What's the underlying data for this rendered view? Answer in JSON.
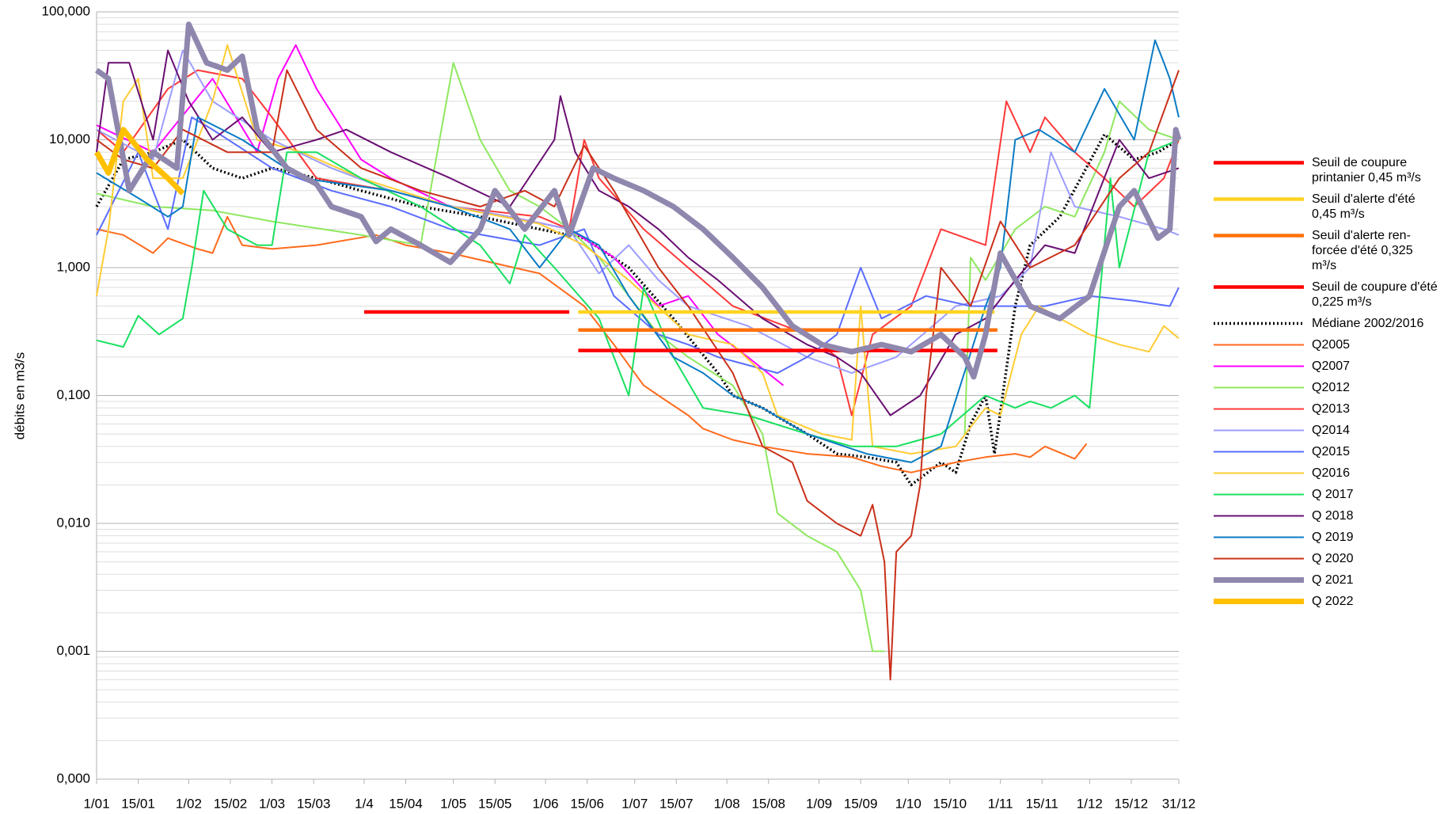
{
  "chart_data": {
    "type": "line",
    "y_label": "débits en m3/s",
    "log_scale": true,
    "grid": true,
    "minor_grid": true,
    "xlim": [
      1,
      365
    ],
    "xticks": [
      {
        "value": 1,
        "label": "1/01"
      },
      {
        "value": 15,
        "label": "15/01"
      },
      {
        "value": 32,
        "label": "1/02"
      },
      {
        "value": 46,
        "label": "15/02"
      },
      {
        "value": 60,
        "label": "1/03"
      },
      {
        "value": 74,
        "label": "15/03"
      },
      {
        "value": 91,
        "label": "1/4"
      },
      {
        "value": 105,
        "label": "15/04"
      },
      {
        "value": 121,
        "label": "1/05"
      },
      {
        "value": 135,
        "label": "15/05"
      },
      {
        "value": 152,
        "label": "1/06"
      },
      {
        "value": 166,
        "label": "15/06"
      },
      {
        "value": 182,
        "label": "1/07"
      },
      {
        "value": 196,
        "label": "15/07"
      },
      {
        "value": 213,
        "label": "1/08"
      },
      {
        "value": 227,
        "label": "15/08"
      },
      {
        "value": 244,
        "label": "1/09"
      },
      {
        "value": 258,
        "label": "15/09"
      },
      {
        "value": 274,
        "label": "1/10"
      },
      {
        "value": 288,
        "label": "15/10"
      },
      {
        "value": 305,
        "label": "1/11"
      },
      {
        "value": 319,
        "label": "15/11"
      },
      {
        "value": 335,
        "label": "1/12"
      },
      {
        "value": 349,
        "label": "15/12"
      },
      {
        "value": 365,
        "label": "31/12"
      }
    ],
    "ylim": [
      0.0001,
      100
    ],
    "yticks": [
      {
        "value": 0.0001,
        "label": "0,000"
      },
      {
        "value": 0.001,
        "label": "0,001"
      },
      {
        "value": 0.01,
        "label": "0,010"
      },
      {
        "value": 0.1,
        "label": "0,100"
      },
      {
        "value": 1,
        "label": "1,000"
      },
      {
        "value": 10,
        "label": "10,000"
      },
      {
        "value": 100,
        "label": "100,000"
      }
    ],
    "series": [
      {
        "name": "Seuil de coupure printanier 0,45 m³/s",
        "color": "#ff0000",
        "style": "threshold",
        "x": [
          91,
          160
        ],
        "values": [
          0.45,
          0.45
        ]
      },
      {
        "name": "Seuil d'alerte d'été 0,45 m³/s",
        "color": "#ffd320",
        "style": "threshold",
        "x": [
          163,
          303
        ],
        "values": [
          0.45,
          0.45
        ]
      },
      {
        "name": "Seuil d'alerte ren-forcée d'été 0,325 m³/s",
        "color": "#ff720d",
        "style": "threshold",
        "x": [
          163,
          304
        ],
        "values": [
          0.325,
          0.325
        ]
      },
      {
        "name": "Seuil de coupure d'été 0,225 m³/s",
        "color": "#ff0000",
        "style": "threshold",
        "x": [
          163,
          304
        ],
        "values": [
          0.225,
          0.225
        ]
      },
      {
        "name": "Médiane 2002/2016",
        "color": "#000000",
        "style": "dotted",
        "x": [
          1,
          10,
          20,
          30,
          40,
          50,
          60,
          75,
          90,
          110,
          130,
          150,
          165,
          180,
          195,
          210,
          215,
          225,
          240,
          250,
          260,
          270,
          275,
          285,
          290,
          295,
          300,
          303,
          310,
          315,
          325,
          340,
          350,
          358,
          365
        ],
        "values": [
          3,
          7,
          8,
          10,
          6,
          5,
          6,
          5,
          4,
          3,
          2.5,
          2,
          1.7,
          1,
          0.4,
          0.15,
          0.1,
          0.08,
          0.05,
          0.035,
          0.033,
          0.03,
          0.02,
          0.03,
          0.025,
          0.06,
          0.1,
          0.035,
          0.5,
          1.5,
          2.5,
          11,
          7,
          8,
          10
        ]
      },
      {
        "name": "Q2005",
        "color": "#ff6a1c",
        "style": "normal",
        "x": [
          1,
          10,
          20,
          25,
          35,
          40,
          45,
          50,
          60,
          75,
          95,
          105,
          120,
          150,
          165,
          175,
          185,
          190,
          200,
          205,
          215,
          225,
          240,
          255,
          265,
          275,
          290,
          300,
          310,
          315,
          320,
          330,
          334
        ],
        "values": [
          2,
          1.8,
          1.3,
          1.7,
          1.4,
          1.3,
          2.5,
          1.5,
          1.4,
          1.5,
          1.8,
          1.5,
          1.3,
          0.9,
          0.5,
          0.25,
          0.12,
          0.1,
          0.07,
          0.055,
          0.045,
          0.04,
          0.035,
          0.033,
          0.028,
          0.025,
          0.03,
          0.033,
          0.035,
          0.033,
          0.04,
          0.032,
          0.042
        ]
      },
      {
        "name": "Q2007",
        "color": "#ff00ff",
        "style": "normal",
        "x": [
          1,
          20,
          40,
          55,
          62,
          68,
          75,
          90,
          100,
          120,
          140,
          160,
          175,
          190,
          200,
          210,
          220,
          232,
          338,
          342
        ],
        "values": [
          13,
          8,
          30,
          8,
          30,
          55,
          25,
          7,
          5,
          3,
          2.5,
          2,
          1.2,
          0.5,
          0.6,
          0.3,
          0.2,
          0.12,
          null,
          2.5
        ]
      },
      {
        "name": "Q2012",
        "color": "#8fe860",
        "style": "normal",
        "x": [
          1,
          20,
          40,
          60,
          90,
          110,
          121,
          130,
          140,
          150,
          160,
          170,
          180,
          190,
          200,
          215,
          225,
          230,
          240,
          250,
          258,
          262,
          266,
          280,
          293,
          295,
          300,
          310,
          320,
          330,
          340,
          345,
          355,
          365
        ],
        "values": [
          3.8,
          3,
          2.8,
          2.3,
          1.8,
          1.5,
          40,
          10,
          4,
          3,
          2,
          1.2,
          0.6,
          0.3,
          0.2,
          0.12,
          0.05,
          0.012,
          0.008,
          0.006,
          0.003,
          0.001,
          0.001,
          null,
          0.05,
          1.2,
          0.8,
          2,
          3,
          2.5,
          8,
          20,
          12,
          10
        ]
      },
      {
        "name": "Q2013",
        "color": "#ff3838",
        "style": "normal",
        "x": [
          1,
          10,
          25,
          35,
          50,
          60,
          75,
          100,
          120,
          150,
          160,
          165,
          170,
          185,
          200,
          215,
          240,
          250,
          255,
          262,
          275,
          285,
          300,
          307,
          315,
          320,
          330,
          340,
          350,
          360,
          365
        ],
        "values": [
          12,
          8,
          25,
          35,
          30,
          15,
          5,
          4,
          3,
          2.5,
          2,
          10,
          5,
          2,
          1,
          0.5,
          0.3,
          0.2,
          0.07,
          0.3,
          0.5,
          2,
          1.5,
          20,
          8,
          15,
          8,
          5,
          3,
          5,
          10
        ]
      },
      {
        "name": "Q2014",
        "color": "#9d9dff",
        "style": "normal",
        "x": [
          1,
          20,
          30,
          40,
          60,
          80,
          100,
          121,
          140,
          160,
          170,
          180,
          190,
          200,
          220,
          240,
          255,
          270,
          290,
          305,
          315,
          322,
          330,
          345,
          360,
          365
        ],
        "values": [
          12,
          7,
          50,
          20,
          10,
          6,
          4,
          3,
          2.5,
          2,
          0.9,
          1.5,
          0.8,
          0.5,
          0.35,
          0.2,
          0.15,
          0.2,
          0.5,
          0.6,
          1,
          8,
          3,
          2.5,
          2,
          1.8
        ]
      },
      {
        "name": "Q2015",
        "color": "#5a6cff",
        "style": "normal",
        "x": [
          1,
          15,
          25,
          33,
          40,
          60,
          80,
          100,
          120,
          150,
          165,
          175,
          190,
          200,
          210,
          230,
          240,
          250,
          258,
          265,
          280,
          295,
          305,
          320,
          335,
          350,
          362,
          365
        ],
        "values": [
          1.8,
          8,
          2,
          15,
          12,
          6,
          4,
          3,
          2,
          1.5,
          2,
          0.6,
          0.3,
          0.25,
          0.2,
          0.15,
          0.2,
          0.3,
          1,
          0.4,
          0.6,
          0.5,
          0.5,
          0.5,
          0.6,
          0.55,
          0.5,
          0.7
        ]
      },
      {
        "name": "Q2016",
        "color": "#ffcc33",
        "style": "normal",
        "x": [
          1,
          5,
          10,
          15,
          20,
          30,
          40,
          45,
          55,
          70,
          90,
          120,
          150,
          165,
          180,
          200,
          215,
          225,
          230,
          245,
          255,
          258,
          262,
          275,
          290,
          300,
          305,
          312,
          318,
          325,
          335,
          345,
          355,
          360,
          365
        ],
        "values": [
          0.6,
          2,
          20,
          30,
          5,
          5,
          20,
          55,
          10,
          8,
          5,
          3,
          2.2,
          1.5,
          0.8,
          0.3,
          0.25,
          0.15,
          0.07,
          0.05,
          0.045,
          0.5,
          0.04,
          0.035,
          0.04,
          0.08,
          0.07,
          0.3,
          0.5,
          0.4,
          0.3,
          0.25,
          0.22,
          0.35,
          0.28
        ]
      },
      {
        "name": "Q 2017",
        "color": "#19e060",
        "style": "normal",
        "x": [
          1,
          10,
          15,
          22,
          30,
          33,
          37,
          45,
          55,
          60,
          65,
          75,
          90,
          110,
          130,
          140,
          145,
          155,
          170,
          180,
          185,
          195,
          205,
          220,
          240,
          255,
          270,
          285,
          300,
          310,
          315,
          322,
          330,
          335,
          342,
          345,
          355,
          365
        ],
        "values": [
          0.27,
          0.24,
          0.42,
          0.3,
          0.4,
          1,
          4,
          2,
          1.5,
          1.5,
          8,
          8,
          5,
          3,
          1.5,
          0.75,
          1.8,
          1,
          0.4,
          0.1,
          0.7,
          0.2,
          0.08,
          0.07,
          0.05,
          0.04,
          0.04,
          0.05,
          0.1,
          0.08,
          0.09,
          0.08,
          0.1,
          0.08,
          5,
          1,
          8,
          10
        ]
      },
      {
        "name": "Q 2018",
        "color": "#6a0f72",
        "style": "normal",
        "x": [
          1,
          5,
          12,
          20,
          25,
          32,
          40,
          50,
          60,
          75,
          85,
          100,
          120,
          140,
          155,
          157,
          162,
          170,
          180,
          190,
          200,
          210,
          225,
          240,
          250,
          258,
          268,
          278,
          290,
          300,
          310,
          320,
          330,
          345,
          355,
          365
        ],
        "values": [
          8,
          40,
          40,
          10,
          50,
          20,
          10,
          15,
          8,
          10,
          12,
          8,
          5,
          3,
          10,
          22,
          8,
          4,
          3,
          2,
          1.2,
          0.8,
          0.4,
          0.25,
          0.2,
          0.15,
          0.07,
          0.1,
          0.3,
          0.4,
          0.8,
          1.5,
          1.3,
          10,
          5,
          6
        ]
      },
      {
        "name": "Q 2019",
        "color": "#0a7bc4",
        "style": "normal",
        "x": [
          1,
          15,
          25,
          30,
          35,
          50,
          70,
          100,
          120,
          140,
          150,
          160,
          170,
          180,
          195,
          205,
          215,
          225,
          240,
          260,
          275,
          285,
          300,
          305,
          310,
          318,
          330,
          340,
          350,
          357,
          360,
          362,
          365
        ],
        "values": [
          5.5,
          3.5,
          2.5,
          3,
          15,
          10,
          5,
          4,
          3,
          2,
          1,
          2,
          1.5,
          0.6,
          0.2,
          0.15,
          0.1,
          0.08,
          0.05,
          0.035,
          0.03,
          0.04,
          0.5,
          1,
          10,
          12,
          8,
          25,
          10,
          60,
          40,
          30,
          15
        ]
      },
      {
        "name": "Q 2020",
        "color": "#c9301a",
        "style": "normal",
        "x": [
          1,
          10,
          20,
          30,
          45,
          60,
          65,
          75,
          90,
          110,
          130,
          145,
          155,
          165,
          175,
          190,
          200,
          215,
          225,
          235,
          240,
          250,
          258,
          262,
          266,
          268,
          270,
          275,
          278,
          280,
          285,
          295,
          305,
          315,
          330,
          345,
          355,
          365
        ],
        "values": [
          10,
          7,
          6,
          12,
          8,
          8,
          35,
          12,
          6,
          4,
          3,
          4,
          3,
          9,
          4,
          1,
          0.5,
          0.15,
          0.04,
          0.03,
          0.015,
          0.01,
          0.008,
          0.014,
          0.005,
          0.0006,
          0.006,
          0.008,
          0.02,
          0.1,
          1,
          0.5,
          2.3,
          1,
          1.5,
          5,
          8,
          35
        ]
      },
      {
        "name": "Q 2021",
        "color": "#8f87ad",
        "style": "thick",
        "x": [
          1,
          5,
          12,
          20,
          28,
          32,
          38,
          45,
          50,
          55,
          65,
          75,
          80,
          90,
          95,
          100,
          110,
          120,
          130,
          135,
          145,
          155,
          160,
          168,
          175,
          185,
          195,
          205,
          215,
          225,
          235,
          245,
          255,
          265,
          275,
          285,
          293,
          296,
          300,
          305,
          315,
          325,
          335,
          345,
          350,
          358,
          362,
          364,
          365
        ],
        "values": [
          35,
          30,
          4,
          8,
          6,
          80,
          40,
          35,
          45,
          12,
          6,
          4.5,
          3,
          2.5,
          1.6,
          2,
          1.5,
          1.1,
          2,
          4,
          2,
          4,
          1.8,
          6,
          5,
          4,
          3,
          2,
          1.2,
          0.7,
          0.35,
          0.25,
          0.22,
          0.25,
          0.22,
          0.3,
          0.2,
          0.14,
          0.3,
          1.3,
          0.5,
          0.4,
          0.6,
          3,
          4,
          1.7,
          2,
          12,
          10
        ]
      },
      {
        "name": "Q 2022",
        "color": "#ffc000",
        "style": "thick",
        "x": [
          1,
          5,
          10,
          18,
          25,
          30
        ],
        "values": [
          8,
          5.5,
          12,
          7,
          5,
          3.8
        ]
      }
    ]
  }
}
